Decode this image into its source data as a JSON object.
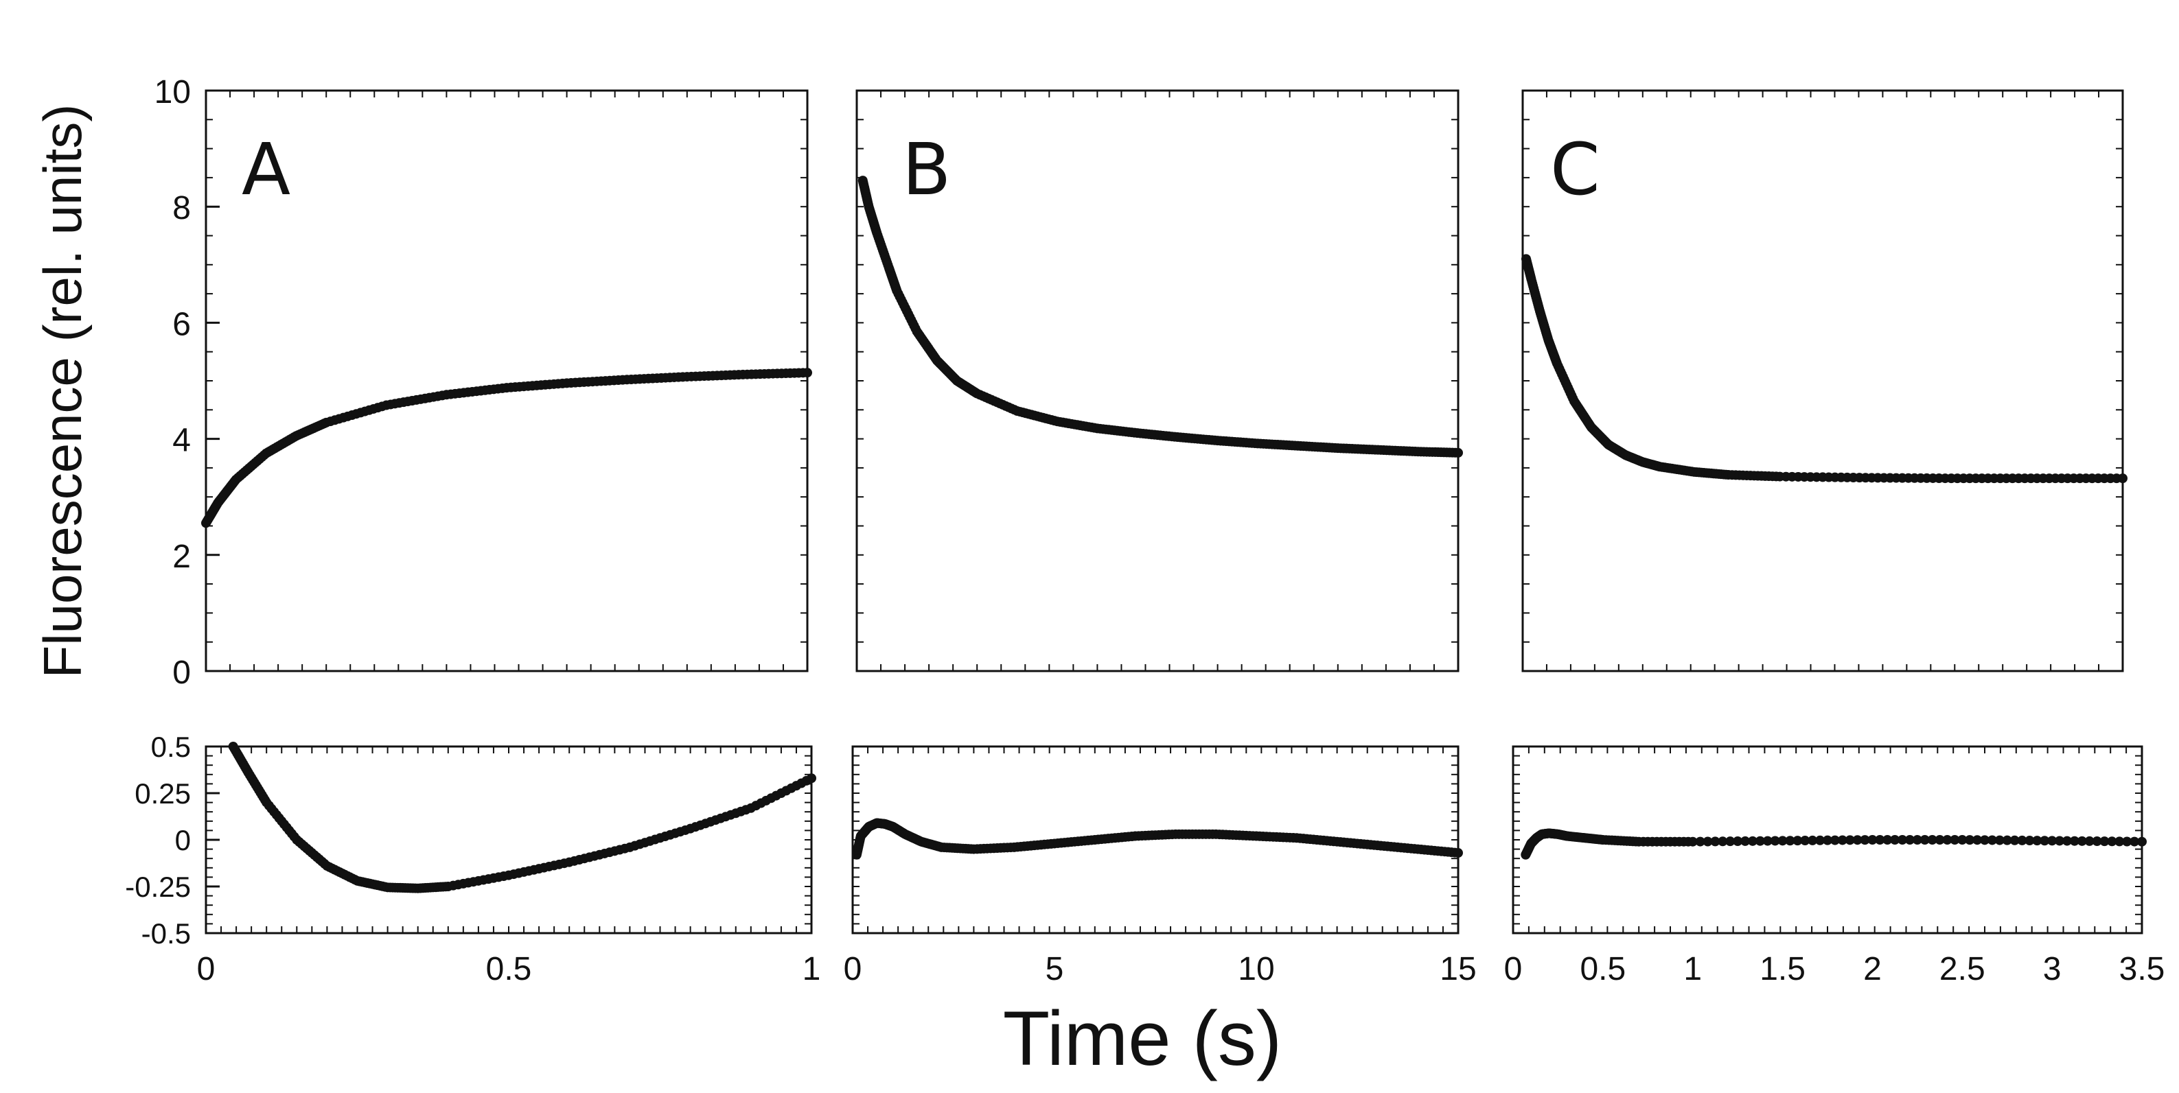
{
  "chart_data": [
    {
      "type": "scatter",
      "panel": "A",
      "role": "main",
      "xlim": [
        0,
        1
      ],
      "ylim": [
        0,
        10
      ],
      "yticks": [
        0,
        2,
        4,
        6,
        8,
        10
      ],
      "ytick_labels": [
        "0",
        "2",
        "4",
        "6",
        "8",
        "10"
      ],
      "series": [
        {
          "name": "A fluorescence",
          "x": [
            0,
            0.02,
            0.05,
            0.1,
            0.15,
            0.2,
            0.3,
            0.4,
            0.5,
            0.6,
            0.7,
            0.8,
            0.9,
            1.0
          ],
          "y": [
            2.55,
            2.9,
            3.3,
            3.75,
            4.05,
            4.28,
            4.58,
            4.76,
            4.88,
            4.96,
            5.02,
            5.07,
            5.11,
            5.14
          ]
        }
      ]
    },
    {
      "type": "scatter",
      "panel": "B",
      "role": "main",
      "xlim": [
        0,
        15
      ],
      "ylim": [
        0,
        10
      ],
      "series": [
        {
          "name": "B fluorescence",
          "x": [
            0.15,
            0.3,
            0.5,
            0.8,
            1.0,
            1.5,
            2.0,
            2.5,
            3.0,
            4.0,
            5.0,
            6.0,
            7.0,
            8.0,
            9.0,
            10.0,
            11.0,
            12.0,
            13.0,
            14.0,
            15.0
          ],
          "y": [
            8.45,
            8.0,
            7.55,
            6.95,
            6.55,
            5.85,
            5.35,
            5.0,
            4.78,
            4.48,
            4.3,
            4.18,
            4.1,
            4.03,
            3.97,
            3.92,
            3.88,
            3.84,
            3.81,
            3.78,
            3.76
          ]
        }
      ]
    },
    {
      "type": "scatter",
      "panel": "C",
      "role": "main",
      "xlim": [
        0,
        3.5
      ],
      "ylim": [
        0,
        10
      ],
      "series": [
        {
          "name": "C fluorescence",
          "x": [
            0.02,
            0.05,
            0.1,
            0.15,
            0.2,
            0.3,
            0.4,
            0.5,
            0.6,
            0.7,
            0.8,
            1.0,
            1.2,
            1.5,
            2.0,
            2.5,
            3.0,
            3.5
          ],
          "y": [
            7.1,
            6.75,
            6.2,
            5.7,
            5.3,
            4.65,
            4.2,
            3.9,
            3.72,
            3.6,
            3.52,
            3.43,
            3.38,
            3.35,
            3.33,
            3.32,
            3.32,
            3.32
          ]
        }
      ]
    },
    {
      "type": "scatter",
      "panel": "A",
      "role": "residual",
      "xlim": [
        0,
        1
      ],
      "ylim": [
        -0.5,
        0.5
      ],
      "xticks": [
        0,
        0.5,
        1
      ],
      "xtick_labels": [
        "0",
        "0.5",
        "1"
      ],
      "yticks": [
        -0.5,
        -0.25,
        0,
        0.25,
        0.5
      ],
      "ytick_labels": [
        "-0.5",
        "-0.25",
        "0",
        "0.25",
        "0.5"
      ],
      "series": [
        {
          "name": "A residuals",
          "x": [
            0.045,
            0.07,
            0.1,
            0.15,
            0.2,
            0.25,
            0.3,
            0.35,
            0.4,
            0.5,
            0.6,
            0.7,
            0.8,
            0.9,
            1.0
          ],
          "y": [
            0.5,
            0.36,
            0.2,
            0.0,
            -0.14,
            -0.22,
            -0.255,
            -0.26,
            -0.25,
            -0.19,
            -0.12,
            -0.04,
            0.06,
            0.17,
            0.33
          ]
        }
      ]
    },
    {
      "type": "scatter",
      "panel": "B",
      "role": "residual",
      "xlim": [
        0,
        15
      ],
      "ylim": [
        -0.5,
        0.5
      ],
      "xticks": [
        0,
        5,
        10,
        15
      ],
      "xtick_labels": [
        "0",
        "5",
        "10",
        "15"
      ],
      "series": [
        {
          "name": "B residuals",
          "x": [
            0.1,
            0.2,
            0.4,
            0.6,
            0.8,
            1.0,
            1.3,
            1.7,
            2.2,
            3.0,
            4.0,
            5.0,
            6.0,
            7.0,
            8.0,
            9.0,
            10.0,
            11.0,
            12.0,
            13.0,
            14.0,
            15.0
          ],
          "y": [
            -0.08,
            0.02,
            0.07,
            0.09,
            0.085,
            0.07,
            0.03,
            -0.01,
            -0.04,
            -0.05,
            -0.04,
            -0.02,
            0.0,
            0.02,
            0.03,
            0.03,
            0.02,
            0.01,
            -0.01,
            -0.03,
            -0.05,
            -0.07
          ]
        }
      ]
    },
    {
      "type": "scatter",
      "panel": "C",
      "role": "residual",
      "xlim": [
        0,
        3.5
      ],
      "ylim": [
        -0.5,
        0.5
      ],
      "xticks": [
        0,
        0.5,
        1,
        1.5,
        2,
        2.5,
        3,
        3.5
      ],
      "xtick_labels": [
        "0",
        "0.5",
        "1",
        "1.5",
        "2",
        "2.5",
        "3",
        "3.5"
      ],
      "series": [
        {
          "name": "C residuals",
          "x": [
            0.07,
            0.1,
            0.13,
            0.16,
            0.2,
            0.25,
            0.3,
            0.4,
            0.5,
            0.7,
            1.0,
            1.5,
            2.0,
            2.5,
            3.0,
            3.5
          ],
          "y": [
            -0.08,
            -0.02,
            0.01,
            0.03,
            0.035,
            0.03,
            0.02,
            0.01,
            0.0,
            -0.01,
            -0.01,
            -0.005,
            0.0,
            0.0,
            -0.005,
            -0.01
          ]
        }
      ]
    }
  ],
  "labels": {
    "y_axis_title": "Fluorescence (rel. units)",
    "x_axis_title": "Time (s)",
    "panel_a": "A",
    "panel_b": "B",
    "panel_c": "C"
  },
  "colors": {
    "frame": "#111111",
    "marker": "#111111"
  }
}
